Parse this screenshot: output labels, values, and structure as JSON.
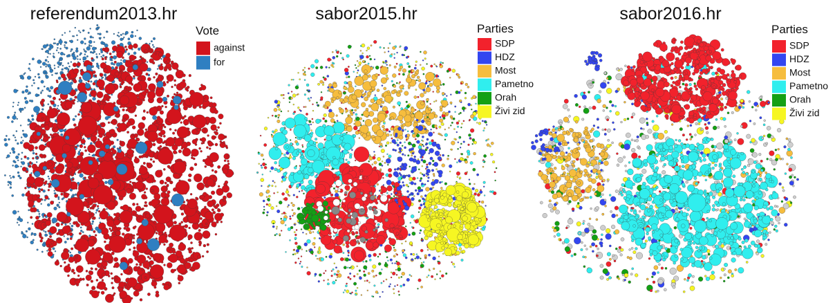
{
  "panels": [
    {
      "title": "referendum2013.hr",
      "legend": {
        "title": "Vote",
        "items": [
          {
            "label": "against",
            "color": "#d3141c"
          },
          {
            "label": "for",
            "color": "#2f7fc1"
          }
        ]
      }
    },
    {
      "title": "sabor2015.hr",
      "legend": {
        "title": "Parties",
        "items": [
          {
            "label": "SDP",
            "color": "#f2222c"
          },
          {
            "label": "HDZ",
            "color": "#3346f0"
          },
          {
            "label": "Most",
            "color": "#f6bd3e"
          },
          {
            "label": "Pametno",
            "color": "#30eeee"
          },
          {
            "label": "Orah",
            "color": "#14a014"
          },
          {
            "label": "Živi zid",
            "color": "#f6f622"
          }
        ]
      }
    },
    {
      "title": "sabor2016.hr",
      "legend": {
        "title": "Parties",
        "items": [
          {
            "label": "SDP",
            "color": "#f2222c"
          },
          {
            "label": "HDZ",
            "color": "#3346f0"
          },
          {
            "label": "Most",
            "color": "#f6bd3e"
          },
          {
            "label": "Pametno",
            "color": "#30eeee"
          },
          {
            "label": "Orah",
            "color": "#14a014"
          },
          {
            "label": "Živi zid",
            "color": "#f6f622"
          }
        ]
      }
    }
  ]
}
